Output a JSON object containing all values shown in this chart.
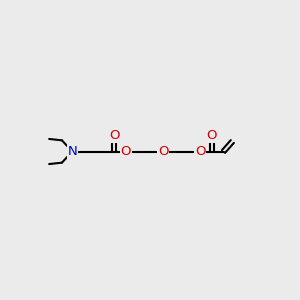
{
  "bg_color": "#ebebeb",
  "atom_color_N": "#0000cc",
  "atom_color_O": "#cc0000",
  "bond_color": "#000000",
  "bond_lw": 1.5,
  "font_size": 9.5,
  "xlim": [
    0,
    10
  ],
  "ylim": [
    3,
    7
  ]
}
